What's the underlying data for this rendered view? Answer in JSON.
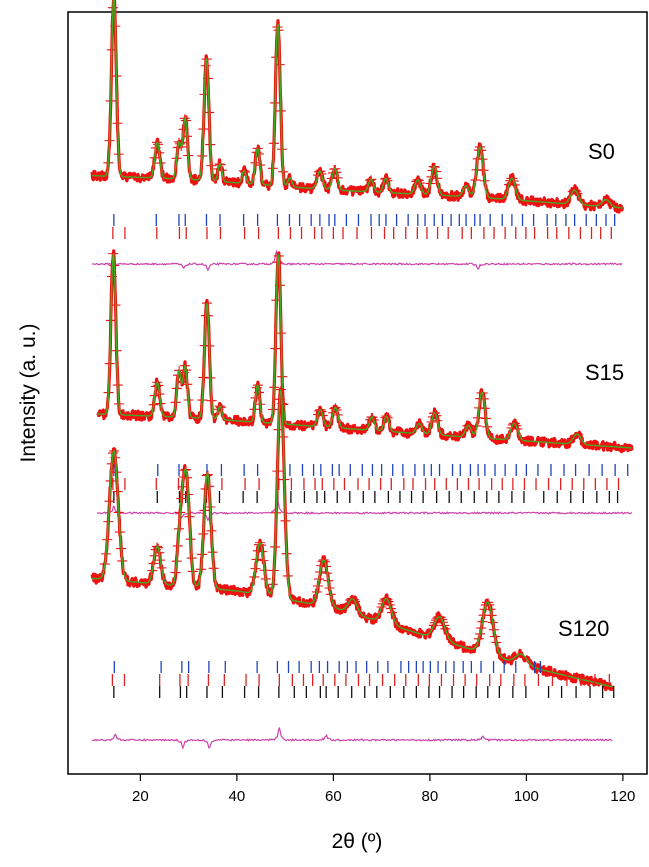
{
  "chart_data": {
    "type": "line",
    "xlabel": "2θ (º)",
    "ylabel": "Intensity (a. u.)",
    "xlim": [
      5,
      125
    ],
    "x_ticks": [
      "20",
      "40",
      "60",
      "80",
      "100",
      "120"
    ],
    "x_tick_values": [
      20,
      40,
      60,
      80,
      100,
      120
    ],
    "grid": false,
    "colors": {
      "observed": "#ee1111",
      "calculated": "#44aa22",
      "difference": "#cc44aa",
      "phase_1_ticks": "#2244bb",
      "phase_2_ticks": "#dd2222",
      "phase_3_ticks": "#111111"
    },
    "samples": [
      {
        "label": "S0",
        "x_range": [
          10,
          120
        ],
        "background": [
          [
            10,
            0.18
          ],
          [
            30,
            0.16
          ],
          [
            60,
            0.1
          ],
          [
            90,
            0.06
          ],
          [
            120,
            0.0
          ]
        ],
        "peaks": [
          [
            14.5,
            1.0,
            0.5
          ],
          [
            23.5,
            0.2,
            0.5
          ],
          [
            28.0,
            0.2,
            0.45
          ],
          [
            29.3,
            0.34,
            0.45
          ],
          [
            33.7,
            0.68,
            0.5
          ],
          [
            36.5,
            0.1,
            0.4
          ],
          [
            41.5,
            0.07,
            0.4
          ],
          [
            44.3,
            0.2,
            0.45
          ],
          [
            48.5,
            0.9,
            0.5
          ],
          [
            51.0,
            0.05,
            0.4
          ],
          [
            57.2,
            0.1,
            0.55
          ],
          [
            60.3,
            0.12,
            0.55
          ],
          [
            67.8,
            0.07,
            0.5
          ],
          [
            70.9,
            0.08,
            0.5
          ],
          [
            77.5,
            0.08,
            0.6
          ],
          [
            80.9,
            0.16,
            0.6
          ],
          [
            87.5,
            0.06,
            0.6
          ],
          [
            90.4,
            0.28,
            0.65
          ],
          [
            97.0,
            0.12,
            0.7
          ],
          [
            110.0,
            0.08,
            0.8
          ],
          [
            116.5,
            0.04,
            0.8
          ]
        ],
        "difference_features": [
          [
            29.0,
            -0.5
          ],
          [
            34.0,
            -0.7
          ],
          [
            48.2,
            1.4
          ],
          [
            90.0,
            -0.5
          ]
        ],
        "reflections": [
          [
            14.5,
            23.3,
            28.0,
            29.3,
            33.7,
            36.5,
            41.4,
            44.3,
            48.4,
            50.9,
            53.0,
            55.4,
            57.2,
            59.1,
            60.3,
            62.7,
            65.2,
            67.8,
            69.5,
            70.9,
            73.1,
            75.5,
            77.5,
            79.0,
            80.9,
            82.6,
            84.4,
            86.1,
            87.5,
            89.3,
            90.4,
            92.5,
            95.0,
            97.0,
            99.2,
            101.5,
            104.3,
            106.1,
            108.2,
            110.0,
            112.4,
            114.5,
            116.5,
            118.3
          ],
          [
            14.3,
            16.8,
            23.4,
            28.1,
            29.5,
            33.8,
            36.6,
            41.6,
            44.5,
            48.6,
            51.1,
            53.4,
            56.1,
            57.6,
            60.0,
            62.0,
            64.9,
            67.9,
            70.6,
            72.5,
            75.0,
            77.4,
            79.4,
            81.6,
            83.8,
            86.7,
            88.6,
            91.2,
            93.3,
            95.6,
            97.8,
            99.9,
            101.7,
            104.4,
            106.3,
            108.8,
            111.2,
            113.5,
            115.4,
            117.6
          ]
        ]
      },
      {
        "label": "S15",
        "x_range": [
          11,
          122
        ],
        "background": [
          [
            11,
            0.2
          ],
          [
            30,
            0.18
          ],
          [
            60,
            0.12
          ],
          [
            90,
            0.06
          ],
          [
            122,
            0.0
          ]
        ],
        "peaks": [
          [
            14.4,
            0.95,
            0.5
          ],
          [
            23.5,
            0.2,
            0.5
          ],
          [
            28.0,
            0.27,
            0.45
          ],
          [
            29.3,
            0.3,
            0.45
          ],
          [
            33.8,
            0.68,
            0.5
          ],
          [
            36.5,
            0.08,
            0.4
          ],
          [
            44.3,
            0.22,
            0.45
          ],
          [
            48.6,
            1.0,
            0.5
          ],
          [
            57.3,
            0.1,
            0.55
          ],
          [
            60.4,
            0.12,
            0.55
          ],
          [
            68.0,
            0.08,
            0.5
          ],
          [
            71.0,
            0.09,
            0.5
          ],
          [
            77.8,
            0.06,
            0.6
          ],
          [
            81.0,
            0.13,
            0.6
          ],
          [
            88.0,
            0.07,
            0.6
          ],
          [
            90.8,
            0.27,
            0.65
          ],
          [
            97.5,
            0.1,
            0.7
          ],
          [
            110.5,
            0.06,
            0.8
          ]
        ],
        "difference_features": [
          [
            14.5,
            0.7
          ],
          [
            28.5,
            -0.6
          ],
          [
            34.0,
            -0.8
          ],
          [
            48.4,
            1.5
          ]
        ],
        "reflections": [
          [
            14.5,
            23.6,
            28.0,
            29.3,
            33.8,
            36.8,
            41.5,
            44.3,
            48.4,
            51.0,
            53.6,
            55.9,
            57.4,
            59.8,
            61.2,
            63.5,
            66.0,
            68.1,
            70.0,
            72.3,
            74.4,
            76.9,
            78.8,
            80.3,
            82.0,
            84.7,
            86.3,
            88.4,
            90.0,
            91.4,
            93.5,
            95.6,
            97.9,
            100.0,
            102.4,
            105.1,
            107.8,
            110.2,
            113.0,
            115.7,
            118.4,
            121.0
          ],
          [
            14.3,
            16.8,
            23.3,
            27.9,
            29.6,
            33.9,
            36.9,
            41.7,
            44.6,
            48.7,
            51.3,
            53.9,
            56.2,
            57.7,
            60.1,
            62.3,
            65.1,
            67.4,
            69.8,
            72.0,
            74.6,
            76.5,
            79.1,
            81.0,
            83.4,
            85.7,
            88.0,
            90.2,
            92.8,
            95.0,
            97.2,
            99.6,
            102.0,
            104.6,
            107.1,
            109.5,
            111.9,
            114.3,
            116.7,
            119.1
          ],
          [
            14.5,
            23.5,
            28.1,
            29.4,
            33.7,
            36.4,
            41.3,
            44.2,
            48.5,
            51.2,
            54.0,
            56.6,
            58.2,
            60.8,
            63.4,
            66.2,
            68.6,
            71.4,
            73.8,
            76.2,
            78.6,
            81.4,
            84.0,
            86.5,
            89.2,
            91.8,
            94.3,
            97.0,
            99.5,
            103.6,
            106.4,
            109.2,
            111.8,
            114.6,
            117.2,
            118.9
          ]
        ]
      },
      {
        "label": "S120",
        "x_range": [
          10,
          118
        ],
        "background": [
          [
            10,
            0.52
          ],
          [
            40,
            0.46
          ],
          [
            60,
            0.38
          ],
          [
            80,
            0.24
          ],
          [
            100,
            0.1
          ],
          [
            118,
            0.0
          ]
        ],
        "peaks": [
          [
            14.5,
            0.62,
            0.9
          ],
          [
            23.5,
            0.18,
            0.7
          ],
          [
            28.3,
            0.25,
            0.6
          ],
          [
            29.5,
            0.52,
            0.7
          ],
          [
            33.9,
            0.55,
            0.7
          ],
          [
            44.8,
            0.25,
            0.8
          ],
          [
            49.1,
            1.0,
            0.7
          ],
          [
            58.0,
            0.22,
            0.9
          ],
          [
            64.0,
            0.07,
            0.9
          ],
          [
            71.0,
            0.12,
            1.0
          ],
          [
            82.0,
            0.11,
            1.1
          ],
          [
            92.0,
            0.25,
            1.1
          ],
          [
            99.0,
            0.05,
            1.2
          ]
        ],
        "difference_features": [
          [
            14.8,
            0.6
          ],
          [
            28.8,
            -0.8
          ],
          [
            34.3,
            -0.9
          ],
          [
            48.8,
            1.4
          ],
          [
            58.5,
            0.5
          ],
          [
            91.0,
            0.4
          ]
        ],
        "reflections": [
          [
            14.6,
            24.3,
            28.6,
            30.0,
            34.2,
            37.6,
            44.2,
            48.4,
            50.7,
            52.9,
            55.4,
            57.1,
            58.8,
            61.2,
            62.9,
            64.7,
            66.9,
            69.2,
            71.3,
            74.0,
            75.6,
            77.2,
            78.6,
            80.1,
            81.7,
            83.3,
            85.0,
            86.9,
            88.6,
            90.6,
            93.2,
            95.4,
            97.8,
            101.7,
            102.9
          ],
          [
            14.2,
            16.7,
            24.0,
            28.2,
            29.9,
            34.1,
            37.4,
            41.9,
            44.6,
            48.8,
            51.5,
            53.8,
            55.7,
            57.9,
            60.3,
            62.6,
            65.2,
            67.5,
            70.2,
            72.7,
            75.0,
            77.6,
            79.9,
            82.4,
            84.9,
            87.3,
            89.7,
            92.4,
            94.7,
            97.4,
            99.7,
            102.5,
            105.4,
            108.4,
            111.3,
            114.2,
            117.2
          ],
          [
            14.5,
            24.0,
            28.3,
            29.6,
            33.8,
            37.0,
            41.6,
            44.5,
            48.7,
            51.9,
            54.4,
            57.3,
            58.5,
            61.0,
            63.8,
            66.5,
            69.0,
            71.8,
            74.6,
            77.2,
            79.8,
            82.0,
            84.6,
            87.0,
            89.6,
            92.0,
            94.4,
            97.2,
            99.9,
            104.6,
            107.3,
            110.3,
            113.2,
            115.8,
            118.1
          ]
        ]
      }
    ]
  }
}
